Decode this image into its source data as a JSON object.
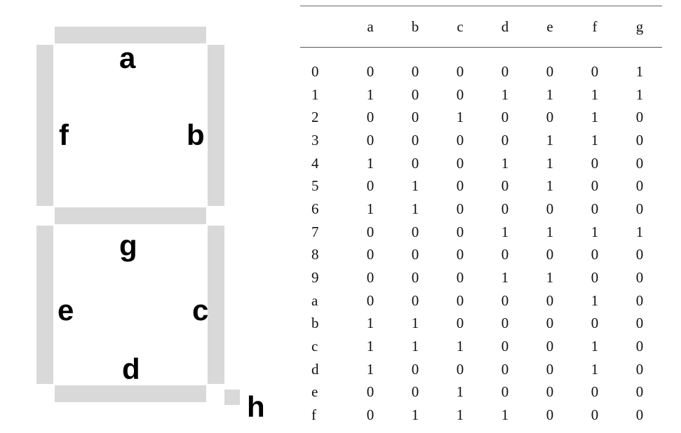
{
  "segments": {
    "labels": {
      "a": "a",
      "b": "b",
      "c": "c",
      "d": "d",
      "e": "e",
      "f": "f",
      "g": "g",
      "h": "h"
    },
    "color": "#d9d9d9"
  },
  "table": {
    "corner": "",
    "columns": [
      "a",
      "b",
      "c",
      "d",
      "e",
      "f",
      "g"
    ],
    "rows": [
      {
        "label": "0",
        "values": [
          "0",
          "0",
          "0",
          "0",
          "0",
          "0",
          "1"
        ]
      },
      {
        "label": "1",
        "values": [
          "1",
          "0",
          "0",
          "1",
          "1",
          "1",
          "1"
        ]
      },
      {
        "label": "2",
        "values": [
          "0",
          "0",
          "1",
          "0",
          "0",
          "1",
          "0"
        ]
      },
      {
        "label": "3",
        "values": [
          "0",
          "0",
          "0",
          "0",
          "1",
          "1",
          "0"
        ]
      },
      {
        "label": "4",
        "values": [
          "1",
          "0",
          "0",
          "1",
          "1",
          "0",
          "0"
        ]
      },
      {
        "label": "5",
        "values": [
          "0",
          "1",
          "0",
          "0",
          "1",
          "0",
          "0"
        ]
      },
      {
        "label": "6",
        "values": [
          "1",
          "1",
          "0",
          "0",
          "0",
          "0",
          "0"
        ]
      },
      {
        "label": "7",
        "values": [
          "0",
          "0",
          "0",
          "1",
          "1",
          "1",
          "1"
        ]
      },
      {
        "label": "8",
        "values": [
          "0",
          "0",
          "0",
          "0",
          "0",
          "0",
          "0"
        ]
      },
      {
        "label": "9",
        "values": [
          "0",
          "0",
          "0",
          "1",
          "1",
          "0",
          "0"
        ]
      },
      {
        "label": "a",
        "values": [
          "0",
          "0",
          "0",
          "0",
          "0",
          "1",
          "0"
        ]
      },
      {
        "label": "b",
        "values": [
          "1",
          "1",
          "0",
          "0",
          "0",
          "0",
          "0"
        ]
      },
      {
        "label": "c",
        "values": [
          "1",
          "1",
          "1",
          "0",
          "0",
          "1",
          "0"
        ]
      },
      {
        "label": "d",
        "values": [
          "1",
          "0",
          "0",
          "0",
          "0",
          "1",
          "0"
        ]
      },
      {
        "label": "e",
        "values": [
          "0",
          "0",
          "1",
          "0",
          "0",
          "0",
          "0"
        ]
      },
      {
        "label": "f",
        "values": [
          "0",
          "1",
          "1",
          "1",
          "0",
          "0",
          "0"
        ]
      }
    ]
  }
}
